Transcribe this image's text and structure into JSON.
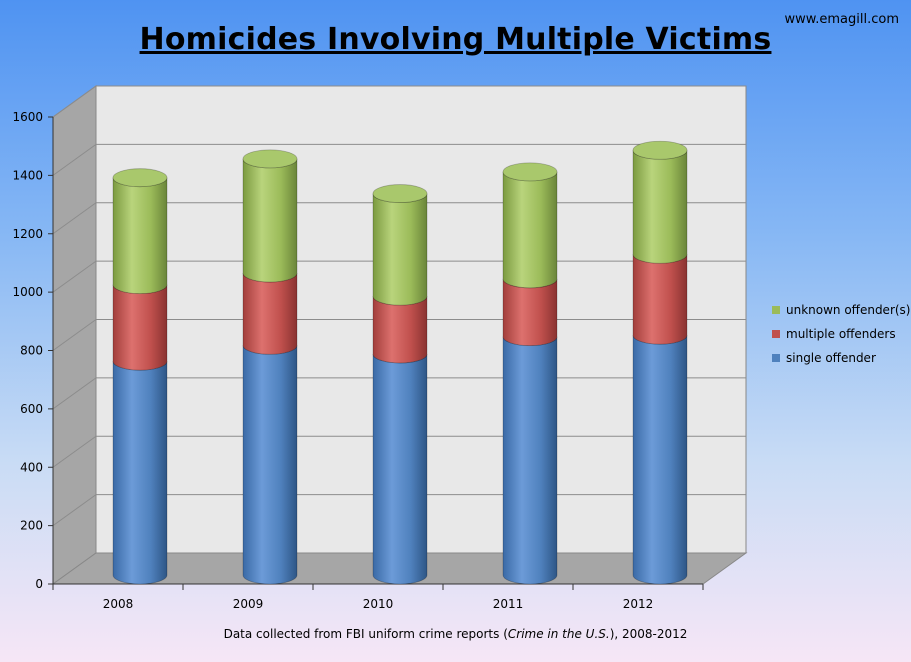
{
  "header": {
    "site": "www.emagill.com"
  },
  "caption": {
    "prefix": "Data collected from FBI uniform crime reports (",
    "italic": "Crime in the U.S.",
    "suffix": "), 2008-2012"
  },
  "chart_data": {
    "type": "bar",
    "stacked": true,
    "style": "3d-cylinder",
    "title": "Homicides Involving Multiple Victims",
    "xlabel": "",
    "ylabel": "",
    "categories": [
      "2008",
      "2009",
      "2010",
      "2011",
      "2012"
    ],
    "ylim": [
      0,
      1600
    ],
    "yticks": [
      "0",
      "200",
      "400",
      "600",
      "800",
      "1000",
      "1200",
      "1400",
      "1600"
    ],
    "grid": true,
    "legend_position": "right",
    "series": [
      {
        "name": "single offender",
        "color": "#4f81bd",
        "values": [
          740,
          795,
          765,
          825,
          830
        ]
      },
      {
        "name": "multiple offenders",
        "color": "#c0504d",
        "values": [
          265,
          250,
          200,
          200,
          280
        ]
      },
      {
        "name": "unknown offender(s)",
        "color": "#9bbb59",
        "values": [
          370,
          395,
          355,
          370,
          360
        ]
      }
    ]
  }
}
